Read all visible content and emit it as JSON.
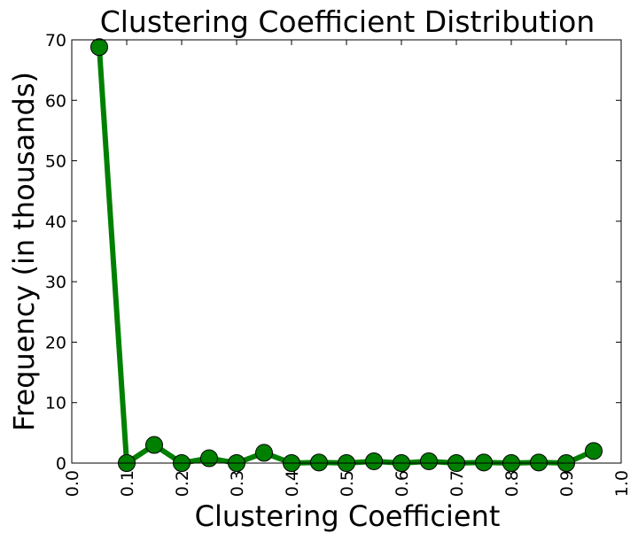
{
  "chart_data": {
    "type": "line",
    "title": "Clustering Coefficient Distribution",
    "xlabel": "Clustering Coefficient",
    "ylabel": "Frequency (in thousands)",
    "xlim": [
      0.0,
      1.0
    ],
    "ylim": [
      0,
      70
    ],
    "xticks": [
      "0.0",
      "0.1",
      "0.2",
      "0.3",
      "0.4",
      "0.5",
      "0.6",
      "0.7",
      "0.8",
      "0.9",
      "1.0"
    ],
    "yticks": [
      "0",
      "10",
      "20",
      "30",
      "40",
      "50",
      "60",
      "70"
    ],
    "grid": false,
    "series": [
      {
        "color": "#008000",
        "x": [
          0.05,
          0.1,
          0.15,
          0.2,
          0.25,
          0.3,
          0.35,
          0.4,
          0.45,
          0.5,
          0.55,
          0.6,
          0.65,
          0.7,
          0.75,
          0.8,
          0.85,
          0.9,
          0.95
        ],
        "y": [
          68.8,
          0.0,
          3.0,
          0.0,
          0.8,
          0.0,
          1.7,
          0.0,
          0.1,
          0.0,
          0.3,
          0.0,
          0.3,
          0.0,
          0.1,
          0.0,
          0.1,
          0.0,
          2.0
        ]
      }
    ]
  }
}
